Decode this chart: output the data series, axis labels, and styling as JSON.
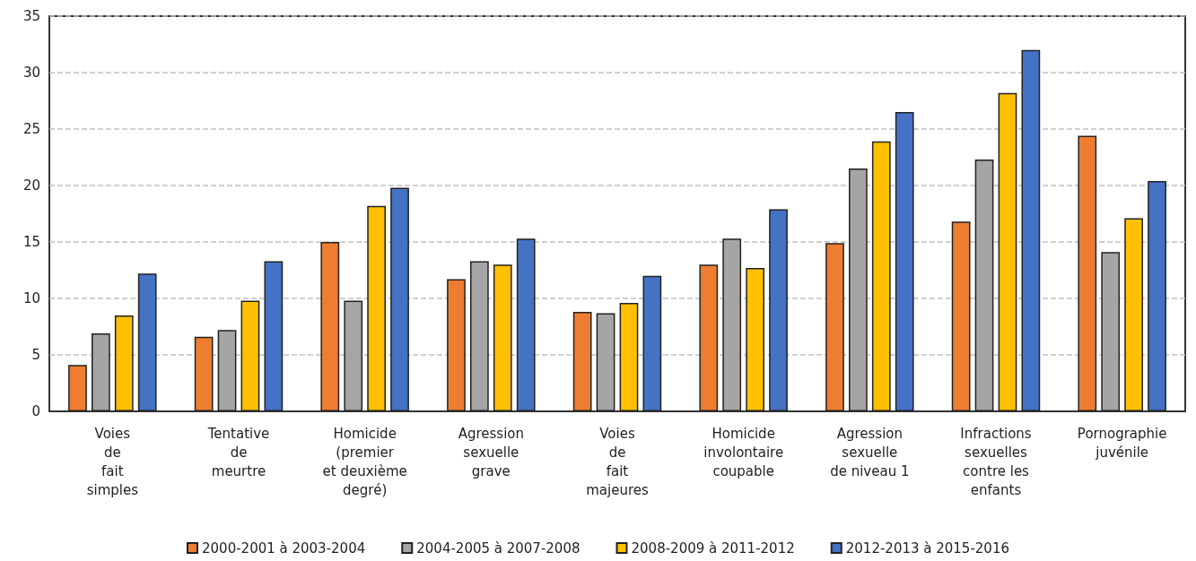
{
  "chart_data": {
    "type": "bar",
    "categories": [
      "Voies\nde\nfait\nsimples",
      "Tentative\nde\nmeurtre",
      "Homicide\n(premier\net deuxième\ndegré)",
      "Agression\nsexuelle\ngrave",
      "Voies\nde\nfait\nmajeures",
      "Homicide\ninvolontaire\ncoupable",
      "Agression\nsexuelle\nde niveau 1",
      "Infractions\nsexuelles\ncontre les\nenfants",
      "Pornographie\njuvénile"
    ],
    "series": [
      {
        "name": "2000-2001 à 2003-2004",
        "color": "#ed7d31",
        "values": [
          4.1,
          6.6,
          15.0,
          11.7,
          8.8,
          13.0,
          14.9,
          16.8,
          24.4
        ]
      },
      {
        "name": "2004-2005 à 2007-2008",
        "color": "#a5a5a5",
        "values": [
          6.9,
          7.2,
          9.8,
          13.3,
          8.7,
          15.3,
          21.5,
          22.3,
          14.1
        ]
      },
      {
        "name": "2008-2009 à 2011-2012",
        "color": "#ffc000",
        "values": [
          8.5,
          9.8,
          18.2,
          13.0,
          9.6,
          12.7,
          23.9,
          28.2,
          17.1
        ]
      },
      {
        "name": "2012-2013 à 2015-2016",
        "color": "#4472c4",
        "values": [
          12.2,
          13.3,
          19.8,
          15.3,
          12.0,
          17.9,
          26.5,
          32.0,
          20.4
        ]
      }
    ],
    "ylim": [
      0,
      35
    ],
    "yticks": [
      0,
      5,
      10,
      15,
      20,
      25,
      30,
      35
    ],
    "grid": "y",
    "legend": "bottom"
  }
}
